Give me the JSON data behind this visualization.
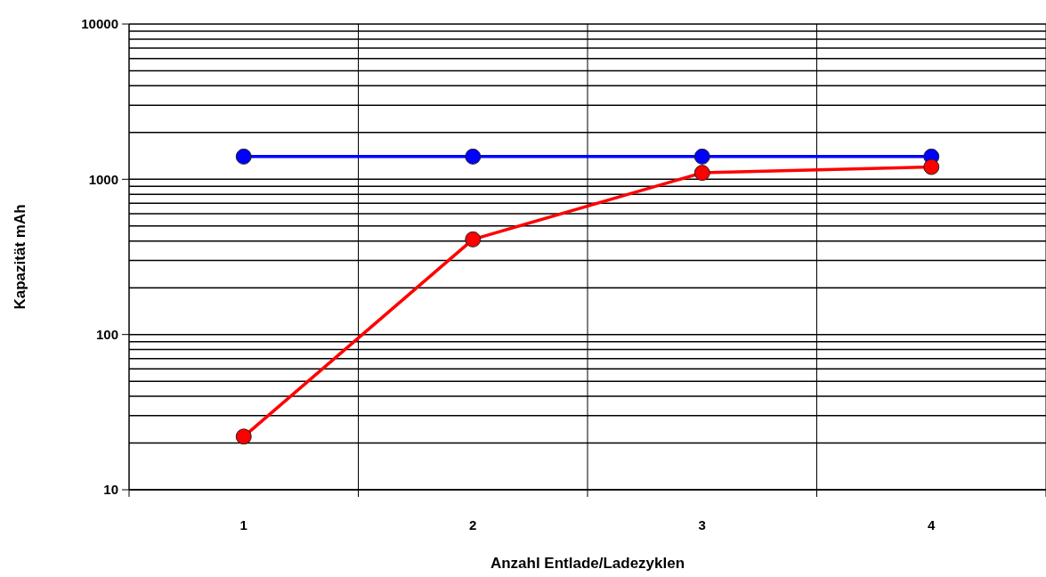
{
  "chart_data": {
    "type": "line",
    "xlabel": "Anzahl Entlade/Ladezyklen",
    "ylabel": "Kapazität mAh",
    "categories": [
      "1",
      "2",
      "3",
      "4"
    ],
    "series": [
      {
        "color": "#0000ff",
        "values": [
          1400,
          1400,
          1400,
          1400
        ]
      },
      {
        "color": "#ff0000",
        "values": [
          22,
          410,
          1100,
          1200
        ]
      }
    ],
    "log": true,
    "ylim": [
      10,
      10000
    ],
    "yticks": [
      10,
      {
        "value": 20,
        "label": null
      },
      {
        "value": 30,
        "label": null
      },
      {
        "value": 40,
        "label": null
      },
      {
        "value": 50,
        "label": null
      },
      {
        "value": 60,
        "label": null
      },
      {
        "value": 70,
        "label": null
      },
      {
        "value": 80,
        "label": null
      },
      {
        "value": 90,
        "label": null
      },
      100,
      {
        "value": 200,
        "label": null
      },
      {
        "value": 300,
        "label": null
      },
      {
        "value": 400,
        "label": null
      },
      {
        "value": 500,
        "label": null
      },
      {
        "value": 600,
        "label": null
      },
      {
        "value": 700,
        "label": null
      },
      {
        "value": 800,
        "label": null
      },
      {
        "value": 900,
        "label": null
      },
      1000,
      {
        "value": 2000,
        "label": null
      },
      {
        "value": 3000,
        "label": null
      },
      {
        "value": 4000,
        "label": null
      },
      {
        "value": 5000,
        "label": null
      },
      {
        "value": 6000,
        "label": null
      },
      {
        "value": 7000,
        "label": null
      },
      {
        "value": 8000,
        "label": null
      },
      {
        "value": 9000,
        "label": null
      },
      10000
    ],
    "grid": true,
    "marker": "circle",
    "line_style": "solid"
  }
}
